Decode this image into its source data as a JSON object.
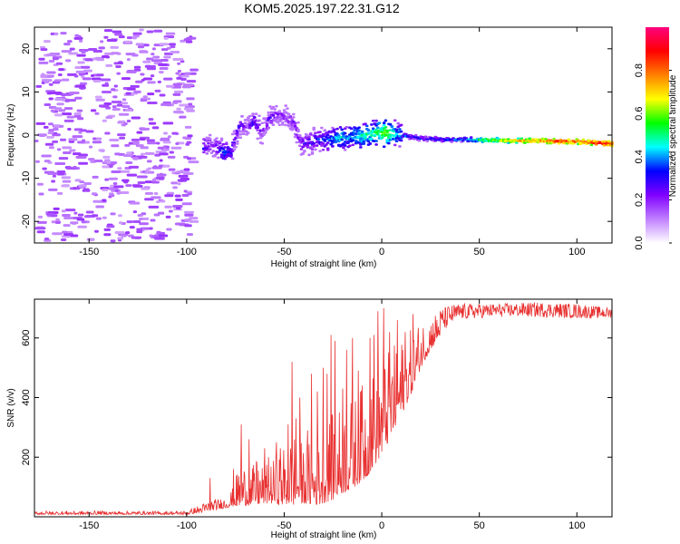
{
  "title": "KOM5.2025.197.22.31.G12",
  "chart_data": [
    {
      "type": "heatmap",
      "xlabel": "Height of straight line (km)",
      "ylabel": "Frequency (Hz)",
      "xlim": [
        -178,
        118
      ],
      "ylim": [
        -25,
        25
      ],
      "x_ticks": [
        -150,
        -100,
        -50,
        0,
        50,
        100
      ],
      "y_ticks": [
        -20,
        -10,
        0,
        10,
        20
      ],
      "colorbar": {
        "label": "Normalized spectral amplitude",
        "range": [
          0,
          1
        ],
        "ticks": [
          0.0,
          0.2,
          0.4,
          0.6,
          0.8
        ],
        "tick_labels": [
          "0.0",
          "0.2",
          "0.4",
          "0.6",
          "0.8"
        ],
        "colors": [
          "#ffffff",
          "#c080ff",
          "#8000ff",
          "#0000ff",
          "#00ffff",
          "#00ff00",
          "#ffff00",
          "#ff8000",
          "#ff0000",
          "#ff0080"
        ]
      },
      "trace": {
        "x": [
          -92,
          -88,
          -82,
          -78,
          -74,
          -70,
          -66,
          -62,
          -58,
          -54,
          -50,
          -46,
          -42,
          -38,
          -34,
          -30,
          -26,
          -22,
          -18,
          -14,
          -10,
          -6,
          -2,
          2,
          6,
          10,
          15,
          20,
          30,
          40,
          50,
          60,
          70,
          80,
          90,
          100,
          110,
          118
        ],
        "y": [
          -3,
          -2,
          -4,
          -4,
          2,
          2,
          3,
          1,
          4,
          5,
          4,
          3,
          -2,
          -2,
          -1,
          -1,
          -1,
          -0.5,
          -0.5,
          0,
          0,
          0.2,
          0.5,
          0.5,
          0.3,
          0,
          -0.5,
          -0.8,
          -1,
          -1,
          -1.1,
          -1.2,
          -1.3,
          -1.3,
          -1.4,
          -1.5,
          -1.8,
          -2.0
        ],
        "amplitude": [
          0.3,
          0.2,
          0.35,
          0.3,
          0.25,
          0.2,
          0.3,
          0.2,
          0.25,
          0.2,
          0.2,
          0.2,
          0.25,
          0.3,
          0.3,
          0.35,
          0.4,
          0.45,
          0.4,
          0.45,
          0.5,
          0.5,
          0.55,
          0.6,
          0.45,
          0.4,
          0.35,
          0.35,
          0.35,
          0.4,
          0.55,
          0.65,
          0.75,
          0.8,
          0.85,
          0.8,
          0.9,
          0.85
        ]
      }
    },
    {
      "type": "line",
      "xlabel": "Height of straight line (km)",
      "ylabel": "SNR (v/v)",
      "xlim": [
        -178,
        118
      ],
      "ylim": [
        0,
        730
      ],
      "x_ticks": [
        -150,
        -100,
        -50,
        0,
        50,
        100
      ],
      "y_ticks": [
        200,
        400,
        600
      ],
      "series_color": "#e83030",
      "envelope": {
        "x": [
          -178,
          -100,
          -92,
          -88,
          -84,
          -80,
          -76,
          -72,
          -68,
          -64,
          -60,
          -56,
          -52,
          -48,
          -44,
          -40,
          -36,
          -32,
          -28,
          -24,
          -20,
          -16,
          -12,
          -8,
          -4,
          0,
          5,
          10,
          15,
          20,
          25,
          30,
          35,
          40,
          60,
          80,
          100,
          118
        ],
        "low": [
          8,
          8,
          15,
          20,
          25,
          30,
          35,
          35,
          40,
          40,
          45,
          45,
          40,
          40,
          40,
          45,
          40,
          40,
          50,
          60,
          80,
          90,
          110,
          130,
          170,
          210,
          270,
          340,
          410,
          500,
          560,
          610,
          640,
          660,
          670,
          670,
          665,
          665
        ],
        "high": [
          20,
          20,
          45,
          60,
          60,
          70,
          100,
          210,
          140,
          200,
          170,
          190,
          220,
          260,
          300,
          240,
          260,
          280,
          320,
          360,
          380,
          400,
          420,
          460,
          500,
          540,
          570,
          600,
          630,
          660,
          680,
          700,
          710,
          715,
          715,
          720,
          715,
          700
        ],
        "spikes": [
          [
            -88,
            130
          ],
          [
            -76,
            160
          ],
          [
            -72,
            310
          ],
          [
            -68,
            260
          ],
          [
            -64,
            180
          ],
          [
            -60,
            230
          ],
          [
            -58,
            200
          ],
          [
            -54,
            250
          ],
          [
            -52,
            230
          ],
          [
            -48,
            310
          ],
          [
            -46,
            520
          ],
          [
            -44,
            330
          ],
          [
            -42,
            400
          ],
          [
            -38,
            290
          ],
          [
            -36,
            480
          ],
          [
            -33,
            420
          ],
          [
            -30,
            500
          ],
          [
            -28,
            480
          ],
          [
            -26,
            610
          ],
          [
            -24,
            590
          ],
          [
            -20,
            430
          ],
          [
            -18,
            560
          ],
          [
            -15,
            600
          ],
          [
            -12,
            490
          ],
          [
            -10,
            440
          ],
          [
            -6,
            600
          ],
          [
            -4,
            610
          ],
          [
            -2,
            690
          ],
          [
            1,
            700
          ],
          [
            4,
            620
          ],
          [
            8,
            660
          ],
          [
            12,
            620
          ],
          [
            16,
            680
          ]
        ]
      }
    }
  ]
}
